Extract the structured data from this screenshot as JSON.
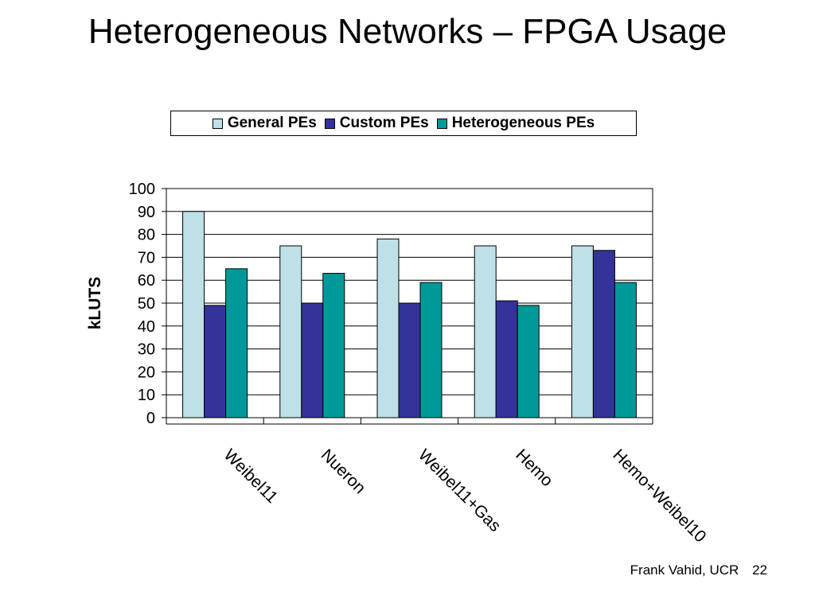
{
  "slide": {
    "title": "Heterogeneous Networks – FPGA Usage",
    "footer_author": "Frank Vahid, UCR",
    "page_number": "22"
  },
  "chart_data": {
    "type": "bar",
    "title": "",
    "xlabel": "",
    "ylabel": "kLUTS",
    "ylim": [
      0,
      100
    ],
    "ytick_step": 10,
    "grid": "horizontal",
    "legend_position": "top",
    "categories": [
      "Weibel11",
      "Nueron",
      "Weibel11+Gas",
      "Hemo",
      "Hemo+Weibel10"
    ],
    "series": [
      {
        "name": "General PEs",
        "color": "#bde1e6",
        "values": [
          90,
          75,
          78,
          75,
          75
        ]
      },
      {
        "name": "Custom PEs",
        "color": "#333399",
        "values": [
          49,
          50,
          50,
          51,
          73
        ]
      },
      {
        "name": "Heterogeneous PEs",
        "color": "#009999",
        "values": [
          65,
          63,
          59,
          49,
          59
        ]
      }
    ]
  }
}
